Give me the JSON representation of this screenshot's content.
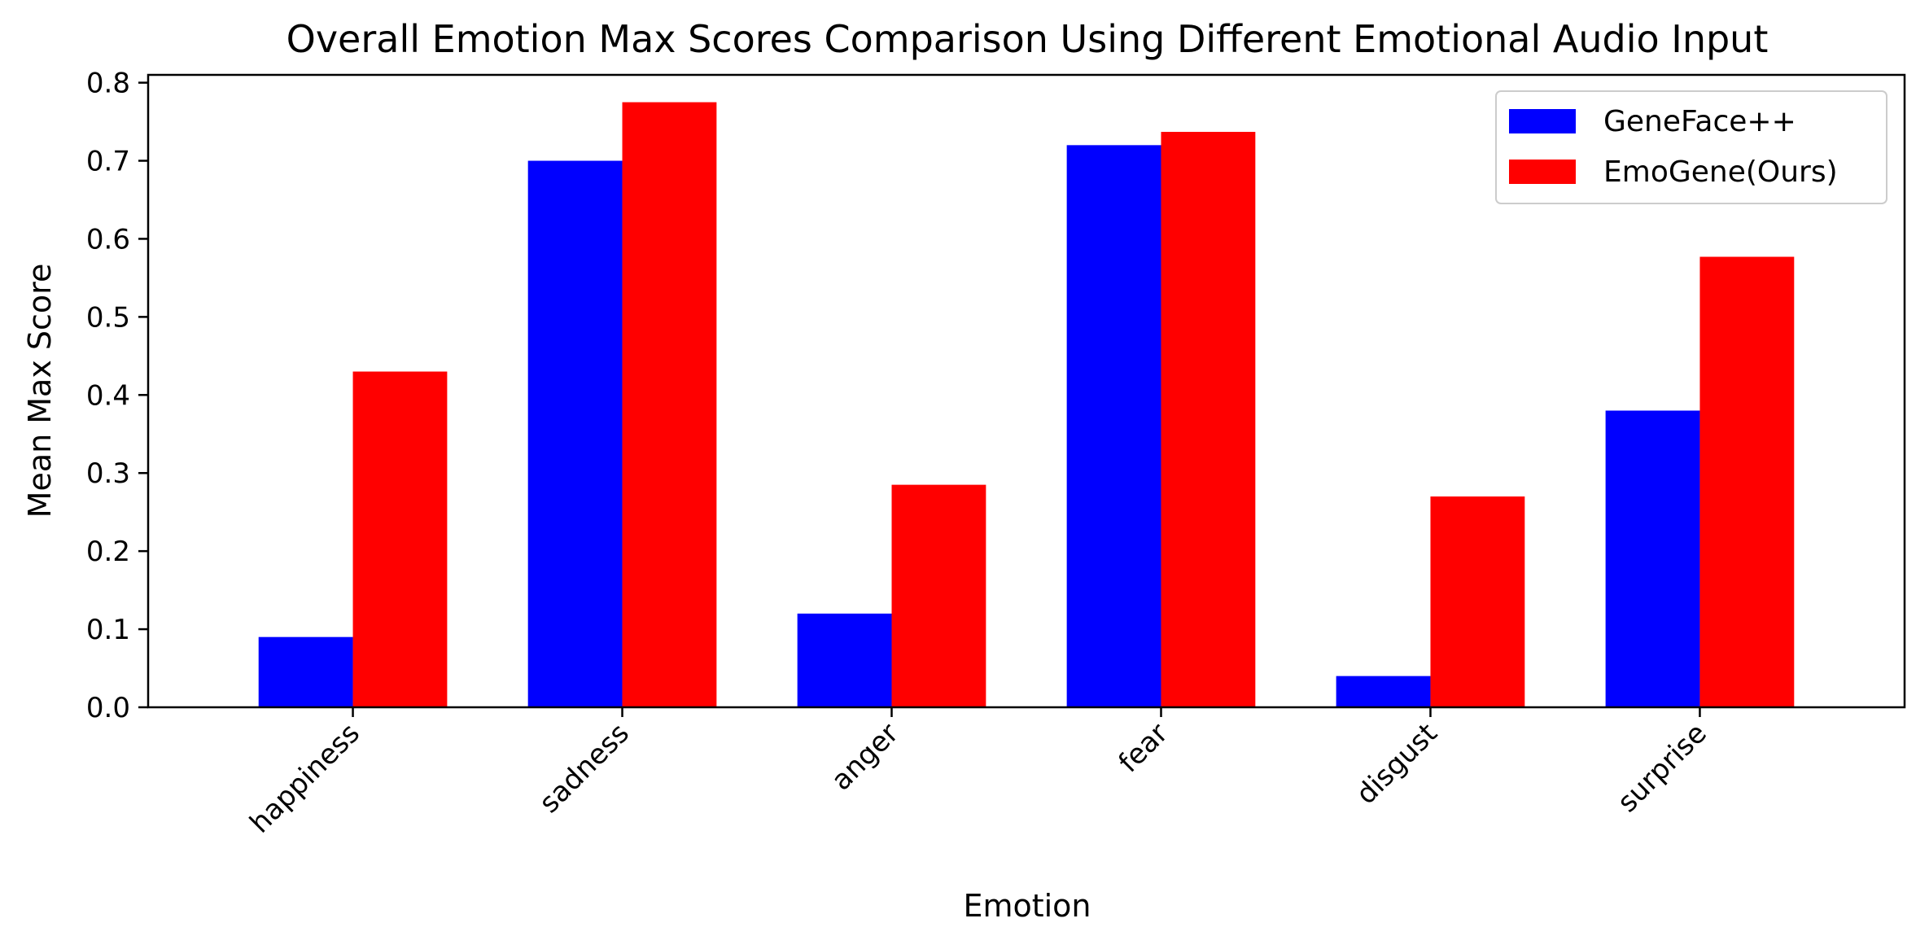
{
  "chart_data": {
    "type": "bar",
    "title": "Overall Emotion Max Scores Comparison Using Different Emotional Audio Input",
    "xlabel": "Emotion",
    "ylabel": "Mean Max Score",
    "categories": [
      "happiness",
      "sadness",
      "anger",
      "fear",
      "disgust",
      "surprise"
    ],
    "series": [
      {
        "name": "GeneFace++",
        "color": "#0000ff",
        "values": [
          0.09,
          0.7,
          0.12,
          0.72,
          0.04,
          0.38
        ]
      },
      {
        "name": "EmoGene(Ours)",
        "color": "#ff0000",
        "values": [
          0.43,
          0.775,
          0.285,
          0.737,
          0.27,
          0.577
        ]
      }
    ],
    "ylim": [
      0,
      0.81
    ],
    "yticks": [
      "0.0",
      "0.1",
      "0.2",
      "0.3",
      "0.4",
      "0.5",
      "0.6",
      "0.7",
      "0.8"
    ],
    "legend_position": "top-right",
    "grid": false
  }
}
